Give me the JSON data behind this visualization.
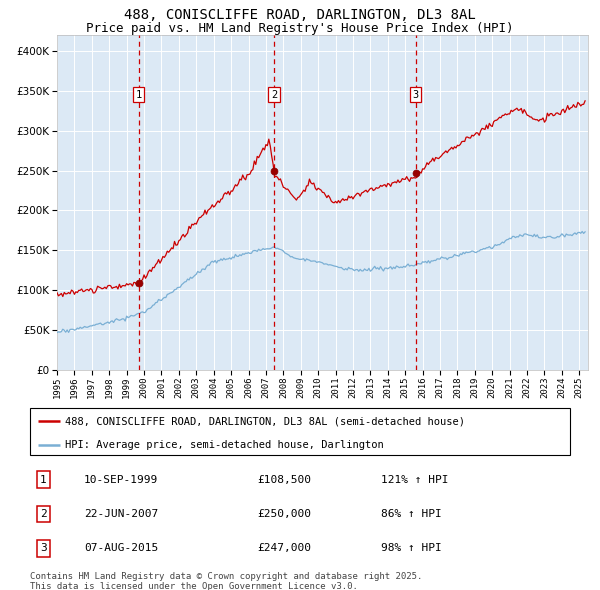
{
  "title1": "488, CONISCLIFFE ROAD, DARLINGTON, DL3 8AL",
  "title2": "Price paid vs. HM Land Registry's House Price Index (HPI)",
  "legend_property": "488, CONISCLIFFE ROAD, DARLINGTON, DL3 8AL (semi-detached house)",
  "legend_hpi": "HPI: Average price, semi-detached house, Darlington",
  "transactions": [
    {
      "num": 1,
      "date": "10-SEP-1999",
      "price": 108500,
      "hpi_pct": "121% ↑ HPI"
    },
    {
      "num": 2,
      "date": "22-JUN-2007",
      "price": 250000,
      "hpi_pct": "86% ↑ HPI"
    },
    {
      "num": 3,
      "date": "07-AUG-2015",
      "price": 247000,
      "hpi_pct": "98% ↑ HPI"
    }
  ],
  "transaction_dates_decimal": [
    1999.69,
    2007.47,
    2015.6
  ],
  "ytick_values": [
    0,
    50000,
    100000,
    150000,
    200000,
    250000,
    300000,
    350000,
    400000
  ],
  "property_color": "#cc0000",
  "hpi_color": "#7aafd4",
  "dashed_line_color": "#cc0000",
  "plot_bg_color": "#dce9f5",
  "copyright_text": "Contains HM Land Registry data © Crown copyright and database right 2025.\nThis data is licensed under the Open Government Licence v3.0.",
  "xstart": 1995.0,
  "xend": 2025.5,
  "ymin": 0,
  "ymax": 420000,
  "footnote_fontsize": 6.5,
  "title_fontsize1": 10,
  "title_fontsize2": 9
}
